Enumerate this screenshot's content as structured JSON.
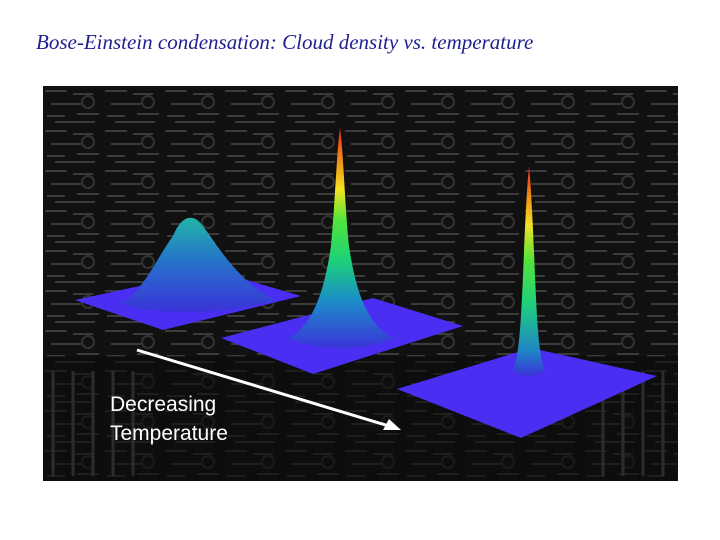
{
  "slide": {
    "title": "Bose-Einstein condensation: Cloud density vs. temperature"
  },
  "figure": {
    "annotation_lines": [
      "Decreasing",
      "Temperature"
    ]
  }
}
